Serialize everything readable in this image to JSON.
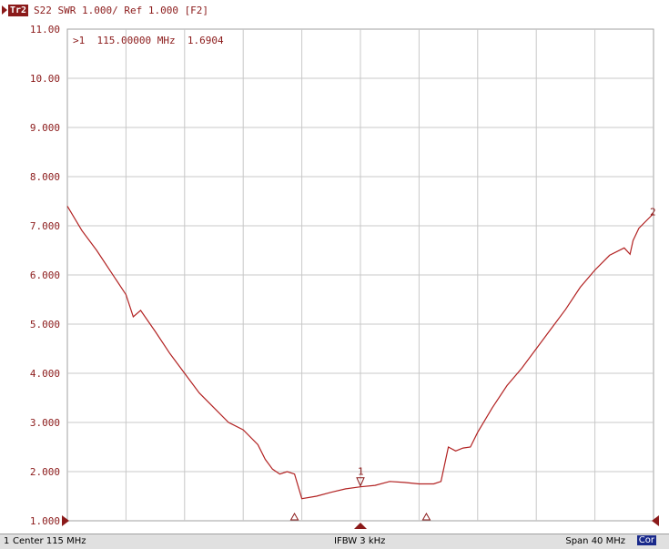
{
  "header": {
    "trace_tag": "Tr2",
    "trace_info": "S22 SWR 1.000/ Ref 1.000 [F2]"
  },
  "marker_readout": ">1  115.00000 MHz  1.6904",
  "status_bar": {
    "channel": "1",
    "center": "Center 115 MHz",
    "ifbw": "IFBW 3 kHz",
    "span": "Span 40 MHz",
    "correction": "Cor"
  },
  "colors": {
    "trace": "#b22222",
    "grid": "#c8c8c8",
    "accent": "#8b1a1a"
  },
  "chart_data": {
    "type": "line",
    "xlabel": "",
    "ylabel": "",
    "x_unit": "MHz",
    "xlim": [
      95,
      135
    ],
    "ylim": [
      1.0,
      11.0
    ],
    "y_tick_labels": [
      "11.00",
      "10.00",
      "9.000",
      "8.000",
      "7.000",
      "6.000",
      "5.000",
      "4.000",
      "3.000",
      "2.000",
      "1.000"
    ],
    "y_ticks": [
      11,
      10,
      9,
      8,
      7,
      6,
      5,
      4,
      3,
      2,
      1
    ],
    "x_grid_divisions": 10,
    "grid": true,
    "trace_end_label": "2",
    "series": [
      {
        "x": [
          95,
          96,
          97,
          98,
          99,
          99.5,
          100,
          101,
          102,
          103,
          104,
          105,
          106,
          107,
          108,
          108.5,
          109,
          109.5,
          110,
          110.5,
          111,
          112,
          113,
          114,
          115,
          116,
          117,
          118,
          119,
          120,
          120.5,
          121,
          121.5,
          122,
          122.5,
          123,
          124,
          125,
          126,
          127,
          128,
          129,
          130,
          131,
          132,
          133,
          133.4,
          133.6,
          134,
          135
        ],
        "y": [
          7.4,
          6.9,
          6.5,
          6.05,
          5.6,
          5.15,
          5.28,
          4.85,
          4.4,
          4.0,
          3.6,
          3.3,
          3.0,
          2.85,
          2.55,
          2.25,
          2.05,
          1.95,
          2.0,
          1.95,
          1.45,
          1.5,
          1.58,
          1.65,
          1.69,
          1.72,
          1.8,
          1.78,
          1.75,
          1.75,
          1.8,
          2.5,
          2.42,
          2.48,
          2.5,
          2.8,
          3.3,
          3.75,
          4.1,
          4.5,
          4.9,
          5.3,
          5.75,
          6.1,
          6.4,
          6.55,
          6.42,
          6.7,
          6.95,
          7.25
        ]
      }
    ],
    "markers": [
      {
        "label": "1",
        "x": 115,
        "y": 1.6904,
        "type": "active"
      },
      {
        "x": 110.5,
        "type": "reference"
      },
      {
        "x": 119.5,
        "type": "reference"
      }
    ]
  }
}
